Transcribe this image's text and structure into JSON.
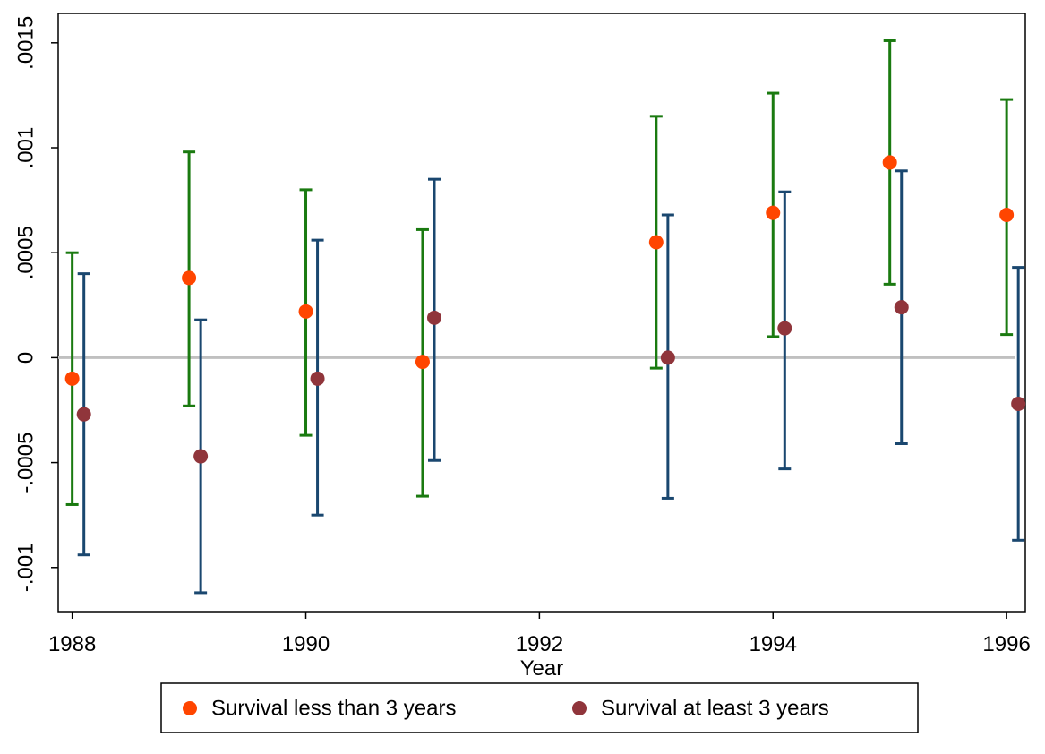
{
  "chart_data": {
    "type": "errorbar",
    "x_label": "Year",
    "xlim": [
      1987.88,
      1996.16
    ],
    "xticks": [
      1988,
      1990,
      1992,
      1994,
      1996
    ],
    "ylim": [
      -0.00121,
      0.00164
    ],
    "yticks": [
      {
        "value": -0.001,
        "label": "-.001"
      },
      {
        "value": -0.0005,
        "label": "-.0005"
      },
      0,
      {
        "value": 0.0005,
        "label": ".0005"
      },
      {
        "value": 0.001,
        "label": ".001"
      },
      {
        "value": 0.0015,
        "label": ".0015"
      }
    ],
    "hline": 0,
    "legend": "bottom",
    "series": [
      {
        "name": "Survival less than 3 years",
        "color": "#ff4500",
        "bar_color": "#1a7a10",
        "x": [
          1988,
          1989,
          1990,
          1991,
          1993,
          1994,
          1995,
          1996
        ],
        "values": [
          -0.0001,
          0.00038,
          0.00022,
          -2e-05,
          0.00055,
          0.00069,
          0.00093,
          0.00068
        ],
        "lower": [
          -0.0007,
          -0.00023,
          -0.00037,
          -0.00066,
          -5e-05,
          0.0001,
          0.00035,
          0.00011
        ],
        "upper": [
          0.0005,
          0.00098,
          0.0008,
          0.00061,
          0.00115,
          0.00126,
          0.00151,
          0.00123
        ]
      },
      {
        "name": "Survival at least 3 years",
        "color": "#90353b",
        "bar_color": "#1a476f",
        "x": [
          1988.1,
          1989.1,
          1990.1,
          1991.1,
          1993.1,
          1994.1,
          1995.1,
          1996.1
        ],
        "values": [
          -0.00027,
          -0.00047,
          -0.0001,
          0.00019,
          0,
          0.00014,
          0.00024,
          -0.00022
        ],
        "lower": [
          -0.00094,
          -0.00112,
          -0.00075,
          -0.00049,
          -0.00067,
          -0.00053,
          -0.00041,
          -0.00087
        ],
        "upper": [
          0.0004,
          0.00018,
          0.00056,
          0.00085,
          0.00068,
          0.00079,
          0.00089,
          0.00043
        ]
      }
    ]
  }
}
